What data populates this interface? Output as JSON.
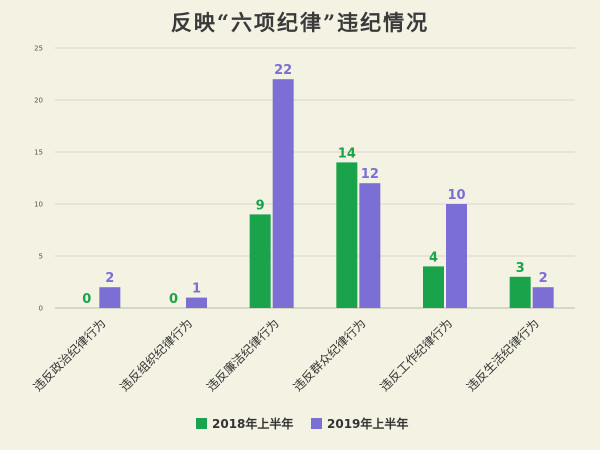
{
  "chart_data": {
    "type": "bar",
    "title": "反映“六项纪律”违纪情况",
    "categories": [
      "违反政治纪律行为",
      "违反组织纪律行为",
      "违反廉洁纪律行为",
      "违反群众纪律行为",
      "违反工作纪律行为",
      "违反生活纪律行为"
    ],
    "series": [
      {
        "name": "2018年上半年",
        "values": [
          0,
          0,
          9,
          14,
          4,
          3
        ],
        "color": "#1aa34a"
      },
      {
        "name": "2019年上半年",
        "values": [
          2,
          1,
          22,
          12,
          10,
          2
        ],
        "color": "#7b6fd6"
      }
    ],
    "ylim": [
      0,
      25
    ],
    "yticks": [
      0,
      5,
      10,
      15,
      20,
      25
    ],
    "grid": true,
    "legend_position": "bottom"
  }
}
